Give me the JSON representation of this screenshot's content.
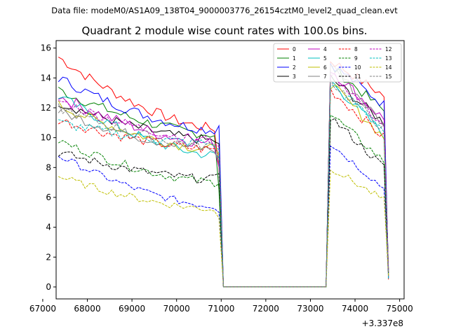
{
  "header": {
    "data_file": "Data file: modeM0/AS1A09_138T04_9000003776_26154cztM0_level2_quad_clean.evt",
    "title": "Quadrant 2 module wise count rates with 100.0s bins."
  },
  "chart_data": {
    "type": "line",
    "title": "Quadrant 2 module wise count rates with 100.0s bins.",
    "xlabel": "",
    "ylabel": "",
    "x_offset_label": "+3.337e8",
    "xlim": [
      67300,
      75100
    ],
    "ylim": [
      -0.8,
      16.5
    ],
    "xticks": [
      67000,
      68000,
      69000,
      70000,
      71000,
      72000,
      73000,
      74000,
      75000
    ],
    "yticks": [
      0,
      2,
      4,
      6,
      8,
      10,
      12,
      14,
      16
    ],
    "grid": false,
    "legend": {
      "placement": "top-right",
      "columns": 4
    },
    "gap": {
      "start": 71050,
      "end": 73350
    },
    "x_segment1": {
      "start": 67350,
      "end": 70950,
      "step": 100
    },
    "x_segment2": {
      "start": 73450,
      "end": 74650,
      "step": 100
    },
    "end_point": {
      "x": 74750,
      "y_range": [
        0.5,
        1.2
      ]
    },
    "series": [
      {
        "name": "0",
        "color": "#ff0000",
        "dash": "solid",
        "seg1_start": 15.4,
        "seg1_end": 10.6,
        "seg1_last": 8.0,
        "seg2_peak": 15.2,
        "seg2_end": 12.8,
        "noise": 0.35
      },
      {
        "name": "1",
        "color": "#008000",
        "dash": "solid",
        "seg1_start": 13.2,
        "seg1_end": 10.2,
        "seg1_last": 6.5,
        "seg2_peak": 14.8,
        "seg2_end": 11.8,
        "noise": 0.35
      },
      {
        "name": "2",
        "color": "#0000ff",
        "dash": "solid",
        "seg1_start": 14.0,
        "seg1_end": 10.5,
        "seg1_last": 10.8,
        "seg2_peak": 15.0,
        "seg2_end": 12.2,
        "noise": 0.35
      },
      {
        "name": "3",
        "color": "#000000",
        "dash": "solid",
        "seg1_start": 12.4,
        "seg1_end": 9.8,
        "seg1_last": 9.6,
        "seg2_peak": 14.0,
        "seg2_end": 11.0,
        "noise": 0.35
      },
      {
        "name": "4",
        "color": "#bf00bf",
        "dash": "solid",
        "seg1_start": 12.8,
        "seg1_end": 9.6,
        "seg1_last": 8.0,
        "seg2_peak": 14.6,
        "seg2_end": 11.2,
        "noise": 0.4
      },
      {
        "name": "5",
        "color": "#00bfbf",
        "dash": "solid",
        "seg1_start": 12.8,
        "seg1_end": 8.8,
        "seg1_last": 8.6,
        "seg2_peak": 13.8,
        "seg2_end": 10.2,
        "noise": 0.35
      },
      {
        "name": "6",
        "color": "#bfbf00",
        "dash": "solid",
        "seg1_start": 12.2,
        "seg1_end": 9.2,
        "seg1_last": 8.8,
        "seg2_peak": 13.6,
        "seg2_end": 10.0,
        "noise": 0.35
      },
      {
        "name": "7",
        "color": "#808080",
        "dash": "solid",
        "seg1_start": 11.8,
        "seg1_end": 9.2,
        "seg1_last": 8.4,
        "seg2_peak": 15.0,
        "seg2_end": 10.8,
        "noise": 0.35
      },
      {
        "name": "8",
        "color": "#ff0000",
        "dash": "dashed",
        "seg1_start": 11.2,
        "seg1_end": 9.2,
        "seg1_last": 9.0,
        "seg2_peak": 13.2,
        "seg2_end": 10.0,
        "noise": 0.35
      },
      {
        "name": "9",
        "color": "#008000",
        "dash": "dashed",
        "seg1_start": 9.8,
        "seg1_end": 7.0,
        "seg1_last": 6.9,
        "seg2_peak": 11.6,
        "seg2_end": 8.4,
        "noise": 0.3
      },
      {
        "name": "10",
        "color": "#0000ff",
        "dash": "dashed",
        "seg1_start": 8.8,
        "seg1_end": 5.4,
        "seg1_last": 5.0,
        "seg2_peak": 9.6,
        "seg2_end": 6.6,
        "noise": 0.25
      },
      {
        "name": "11",
        "color": "#000000",
        "dash": "dashed",
        "seg1_start": 9.0,
        "seg1_end": 7.2,
        "seg1_last": 7.6,
        "seg2_peak": 11.4,
        "seg2_end": 8.0,
        "noise": 0.3
      },
      {
        "name": "12",
        "color": "#bf00bf",
        "dash": "dashed",
        "seg1_start": 12.5,
        "seg1_end": 9.8,
        "seg1_last": 9.4,
        "seg2_peak": 14.4,
        "seg2_end": 10.8,
        "noise": 0.35
      },
      {
        "name": "13",
        "color": "#00bfbf",
        "dash": "dashed",
        "seg1_start": 11.0,
        "seg1_end": 9.6,
        "seg1_last": 9.2,
        "seg2_peak": 13.6,
        "seg2_end": 10.6,
        "noise": 0.35
      },
      {
        "name": "14",
        "color": "#bfbf00",
        "dash": "dashed",
        "seg1_start": 7.4,
        "seg1_end": 5.2,
        "seg1_last": 4.6,
        "seg2_peak": 8.0,
        "seg2_end": 5.8,
        "noise": 0.25
      },
      {
        "name": "15",
        "color": "#808080",
        "dash": "dashed",
        "seg1_start": 12.0,
        "seg1_end": 9.4,
        "seg1_last": 8.6,
        "seg2_peak": 13.8,
        "seg2_end": 10.6,
        "noise": 0.35
      }
    ]
  }
}
